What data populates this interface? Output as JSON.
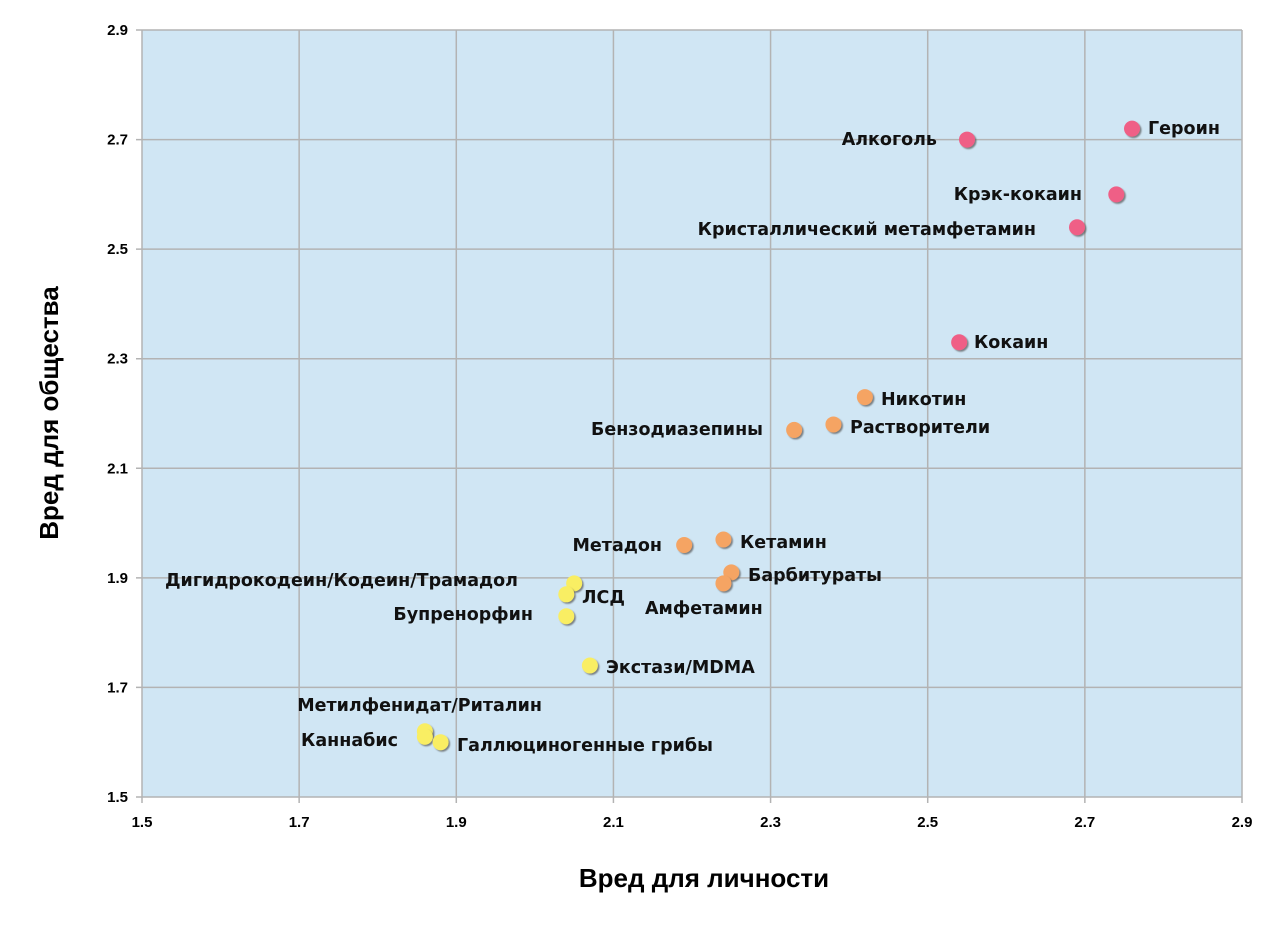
{
  "chart_data": {
    "type": "scatter",
    "title": "",
    "xlabel": "Вред для личности",
    "ylabel": "Вред для общества",
    "xlim": [
      1.5,
      2.9
    ],
    "ylim": [
      1.5,
      2.9
    ],
    "xticks": [
      "1.5",
      "1.7",
      "1.9",
      "2.1",
      "2.3",
      "2.5",
      "2.7",
      "2.9"
    ],
    "yticks": [
      "1.5",
      "1.7",
      "1.9",
      "2.1",
      "2.3",
      "2.5",
      "2.7",
      "2.9"
    ],
    "grid": true,
    "background": "#d0e6f4",
    "colors": {
      "high": "#ef5f86",
      "medium": "#f5a463",
      "low": "#f9ee64"
    },
    "points": [
      {
        "label": "Героин",
        "x": 2.76,
        "y": 2.72,
        "group": "high"
      },
      {
        "label": "Алкоголь",
        "x": 2.55,
        "y": 2.7,
        "group": "high"
      },
      {
        "label": "Крэк-кокаин",
        "x": 2.74,
        "y": 2.6,
        "group": "high"
      },
      {
        "label": "Кристаллический метамфетамин",
        "x": 2.69,
        "y": 2.54,
        "group": "high"
      },
      {
        "label": "Кокаин",
        "x": 2.54,
        "y": 2.33,
        "group": "high"
      },
      {
        "label": "Никотин",
        "x": 2.42,
        "y": 2.23,
        "group": "medium"
      },
      {
        "label": "Растворители",
        "x": 2.38,
        "y": 2.18,
        "group": "medium"
      },
      {
        "label": "Бензодиазепины",
        "x": 2.33,
        "y": 2.17,
        "group": "medium"
      },
      {
        "label": "Кетамин",
        "x": 2.24,
        "y": 1.97,
        "group": "medium"
      },
      {
        "label": "Метадон",
        "x": 2.19,
        "y": 1.96,
        "group": "medium"
      },
      {
        "label": "Барбитураты",
        "x": 2.25,
        "y": 1.91,
        "group": "medium"
      },
      {
        "label": "Амфетамин",
        "x": 2.24,
        "y": 1.89,
        "group": "medium"
      },
      {
        "label": "Дигидрокодеин/Кодеин/Трамадол",
        "x": 2.05,
        "y": 1.89,
        "group": "low"
      },
      {
        "label": "ЛСД",
        "x": 2.04,
        "y": 1.87,
        "group": "low"
      },
      {
        "label": "Бупренорфин",
        "x": 2.04,
        "y": 1.83,
        "group": "low"
      },
      {
        "label": "Экстази/MDMA",
        "x": 2.07,
        "y": 1.74,
        "group": "low"
      },
      {
        "label": "Метилфенидат/Риталин",
        "x": 1.86,
        "y": 1.62,
        "group": "low"
      },
      {
        "label": "Каннабис",
        "x": 1.86,
        "y": 1.61,
        "group": "low"
      },
      {
        "label": "Галлюциногенные грибы",
        "x": 1.88,
        "y": 1.6,
        "group": "low"
      }
    ]
  }
}
